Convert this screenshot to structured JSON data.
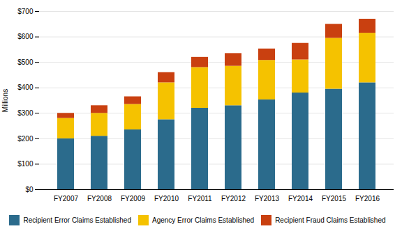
{
  "chart_data": {
    "type": "bar",
    "stacked": true,
    "categories": [
      "FY2007",
      "FY2008",
      "FY2009",
      "FY2010",
      "FY2011",
      "FY2012",
      "FY2013",
      "FY2014",
      "FY2015",
      "FY2016"
    ],
    "series": [
      {
        "name": "Recipient Error Claims Established",
        "color": "#2B6B8C",
        "values": [
          200,
          210,
          235,
          275,
          320,
          330,
          353,
          380,
          395,
          420
        ]
      },
      {
        "name": "Agency Error Claims Established",
        "color": "#F5C200",
        "values": [
          80,
          90,
          100,
          145,
          160,
          155,
          155,
          130,
          200,
          195
        ]
      },
      {
        "name": "Recipient Fraud Claims Established",
        "color": "#C94010",
        "values": [
          20,
          30,
          30,
          40,
          40,
          50,
          45,
          65,
          55,
          55
        ]
      }
    ],
    "ylabel": "Millions",
    "ylim": [
      0,
      700
    ],
    "yticks": [
      {
        "value": 0,
        "label": "$0"
      },
      {
        "value": 100,
        "label": "$100"
      },
      {
        "value": 200,
        "label": "$200"
      },
      {
        "value": 300,
        "label": "$300"
      },
      {
        "value": 400,
        "label": "$400"
      },
      {
        "value": 500,
        "label": "$500"
      },
      {
        "value": 600,
        "label": "$600"
      },
      {
        "value": 700,
        "label": "$700"
      }
    ],
    "grid": true,
    "legend": "bottom"
  }
}
